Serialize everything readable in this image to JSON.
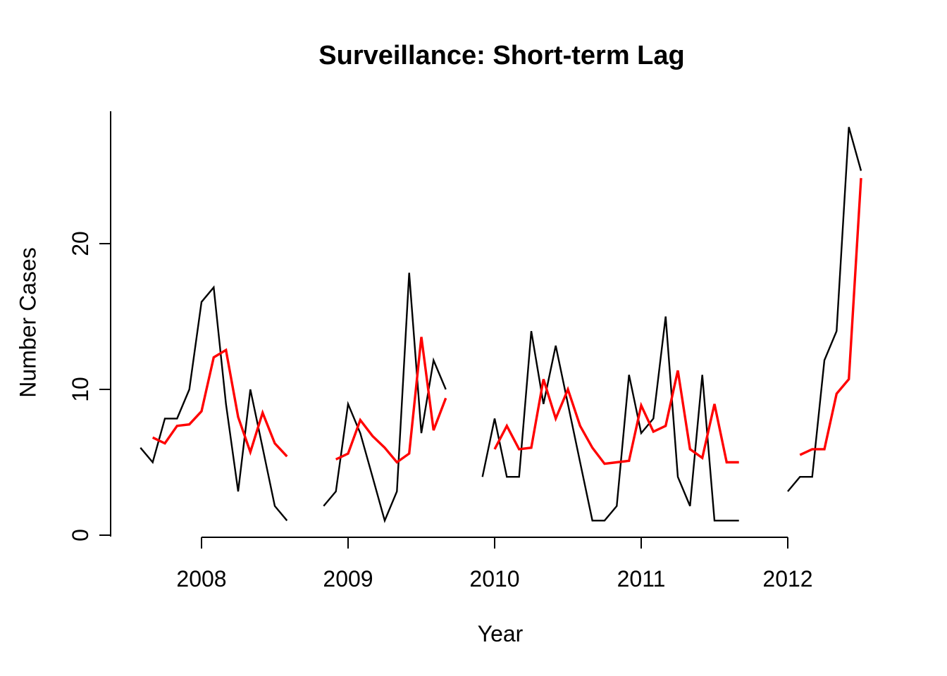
{
  "chart_data": {
    "type": "line",
    "title": "Surveillance: Short-term Lag",
    "xlabel": "Year",
    "ylabel": "Number Cases",
    "x_ticks": [
      "2008",
      "2009",
      "2010",
      "2011",
      "2012"
    ],
    "y_ticks": [
      "0",
      "10",
      "20"
    ],
    "xlim": [
      2007.55,
      2012.55
    ],
    "ylim": [
      0,
      28
    ],
    "grid": false,
    "legend": "none",
    "frequency": "monthly",
    "colors": {
      "black_series": "#000000",
      "red_series": "#FF0000",
      "axis": "#000000",
      "background": "#FFFFFF"
    },
    "series": [
      {
        "name": "black-line",
        "color": "#000000",
        "segments": [
          {
            "points": [
              [
                "2007-08",
                6
              ],
              [
                "2007-09",
                5
              ],
              [
                "2007-10",
                8
              ],
              [
                "2007-11",
                8
              ],
              [
                "2007-12",
                10
              ],
              [
                "2008-01",
                16
              ],
              [
                "2008-02",
                17
              ],
              [
                "2008-03",
                9
              ],
              [
                "2008-04",
                3
              ],
              [
                "2008-05",
                10
              ],
              [
                "2008-06",
                6
              ],
              [
                "2008-07",
                2
              ],
              [
                "2008-08",
                1
              ]
            ]
          },
          {
            "points": [
              [
                "2008-11",
                2
              ],
              [
                "2008-12",
                3
              ],
              [
                "2009-01",
                9
              ],
              [
                "2009-02",
                7
              ],
              [
                "2009-03",
                4
              ],
              [
                "2009-04",
                1
              ],
              [
                "2009-05",
                3
              ],
              [
                "2009-06",
                18
              ],
              [
                "2009-07",
                7
              ],
              [
                "2009-08",
                12
              ],
              [
                "2009-09",
                10
              ]
            ]
          },
          {
            "points": [
              [
                "2009-12",
                4
              ],
              [
                "2010-01",
                8
              ],
              [
                "2010-02",
                4
              ],
              [
                "2010-03",
                4
              ],
              [
                "2010-04",
                14
              ],
              [
                "2010-05",
                9
              ],
              [
                "2010-06",
                13
              ],
              [
                "2010-07",
                9
              ],
              [
                "2010-08",
                5
              ],
              [
                "2010-09",
                1
              ],
              [
                "2010-10",
                1
              ],
              [
                "2010-11",
                2
              ],
              [
                "2010-12",
                11
              ],
              [
                "2011-01",
                7
              ],
              [
                "2011-02",
                8
              ],
              [
                "2011-03",
                15
              ],
              [
                "2011-04",
                4
              ],
              [
                "2011-05",
                2
              ],
              [
                "2011-06",
                11
              ],
              [
                "2011-07",
                1
              ],
              [
                "2011-08",
                1
              ],
              [
                "2011-09",
                1
              ]
            ]
          },
          {
            "points": [
              [
                "2012-01",
                3
              ],
              [
                "2012-02",
                4
              ],
              [
                "2012-03",
                4
              ],
              [
                "2012-04",
                12
              ],
              [
                "2012-05",
                14
              ],
              [
                "2012-06",
                28
              ],
              [
                "2012-07",
                25
              ]
            ]
          }
        ]
      },
      {
        "name": "red-line",
        "color": "#FF0000",
        "segments": [
          {
            "points": [
              [
                "2007-09",
                6.7
              ],
              [
                "2007-10",
                6.3
              ],
              [
                "2007-11",
                7.5
              ],
              [
                "2007-12",
                7.6
              ],
              [
                "2008-01",
                8.5
              ],
              [
                "2008-02",
                12.2
              ],
              [
                "2008-03",
                12.7
              ],
              [
                "2008-04",
                8.1
              ],
              [
                "2008-05",
                5.7
              ],
              [
                "2008-06",
                8.4
              ],
              [
                "2008-07",
                6.3
              ],
              [
                "2008-08",
                5.4
              ]
            ]
          },
          {
            "points": [
              [
                "2008-12",
                5.2
              ],
              [
                "2009-01",
                5.6
              ],
              [
                "2009-02",
                7.9
              ],
              [
                "2009-03",
                6.8
              ],
              [
                "2009-04",
                6.0
              ],
              [
                "2009-05",
                5.0
              ],
              [
                "2009-06",
                5.6
              ],
              [
                "2009-07",
                13.6
              ],
              [
                "2009-08",
                7.2
              ],
              [
                "2009-09",
                9.4
              ]
            ]
          },
          {
            "points": [
              [
                "2010-01",
                5.9
              ],
              [
                "2010-02",
                7.5
              ],
              [
                "2010-03",
                5.9
              ],
              [
                "2010-04",
                6.0
              ],
              [
                "2010-05",
                10.7
              ],
              [
                "2010-06",
                8.0
              ],
              [
                "2010-07",
                10.0
              ],
              [
                "2010-08",
                7.5
              ],
              [
                "2010-09",
                6.0
              ],
              [
                "2010-10",
                4.9
              ],
              [
                "2010-11",
                5.0
              ],
              [
                "2010-12",
                5.1
              ],
              [
                "2011-01",
                8.9
              ],
              [
                "2011-02",
                7.1
              ],
              [
                "2011-03",
                7.5
              ],
              [
                "2011-04",
                11.3
              ],
              [
                "2011-05",
                5.9
              ],
              [
                "2011-06",
                5.3
              ],
              [
                "2011-07",
                9.0
              ],
              [
                "2011-08",
                5.0
              ],
              [
                "2011-09",
                5.0
              ]
            ]
          },
          {
            "points": [
              [
                "2012-02",
                5.5
              ],
              [
                "2012-03",
                5.9
              ],
              [
                "2012-04",
                5.9
              ],
              [
                "2012-05",
                9.7
              ],
              [
                "2012-06",
                10.7
              ],
              [
                "2012-07",
                24.5
              ]
            ]
          }
        ]
      }
    ]
  }
}
